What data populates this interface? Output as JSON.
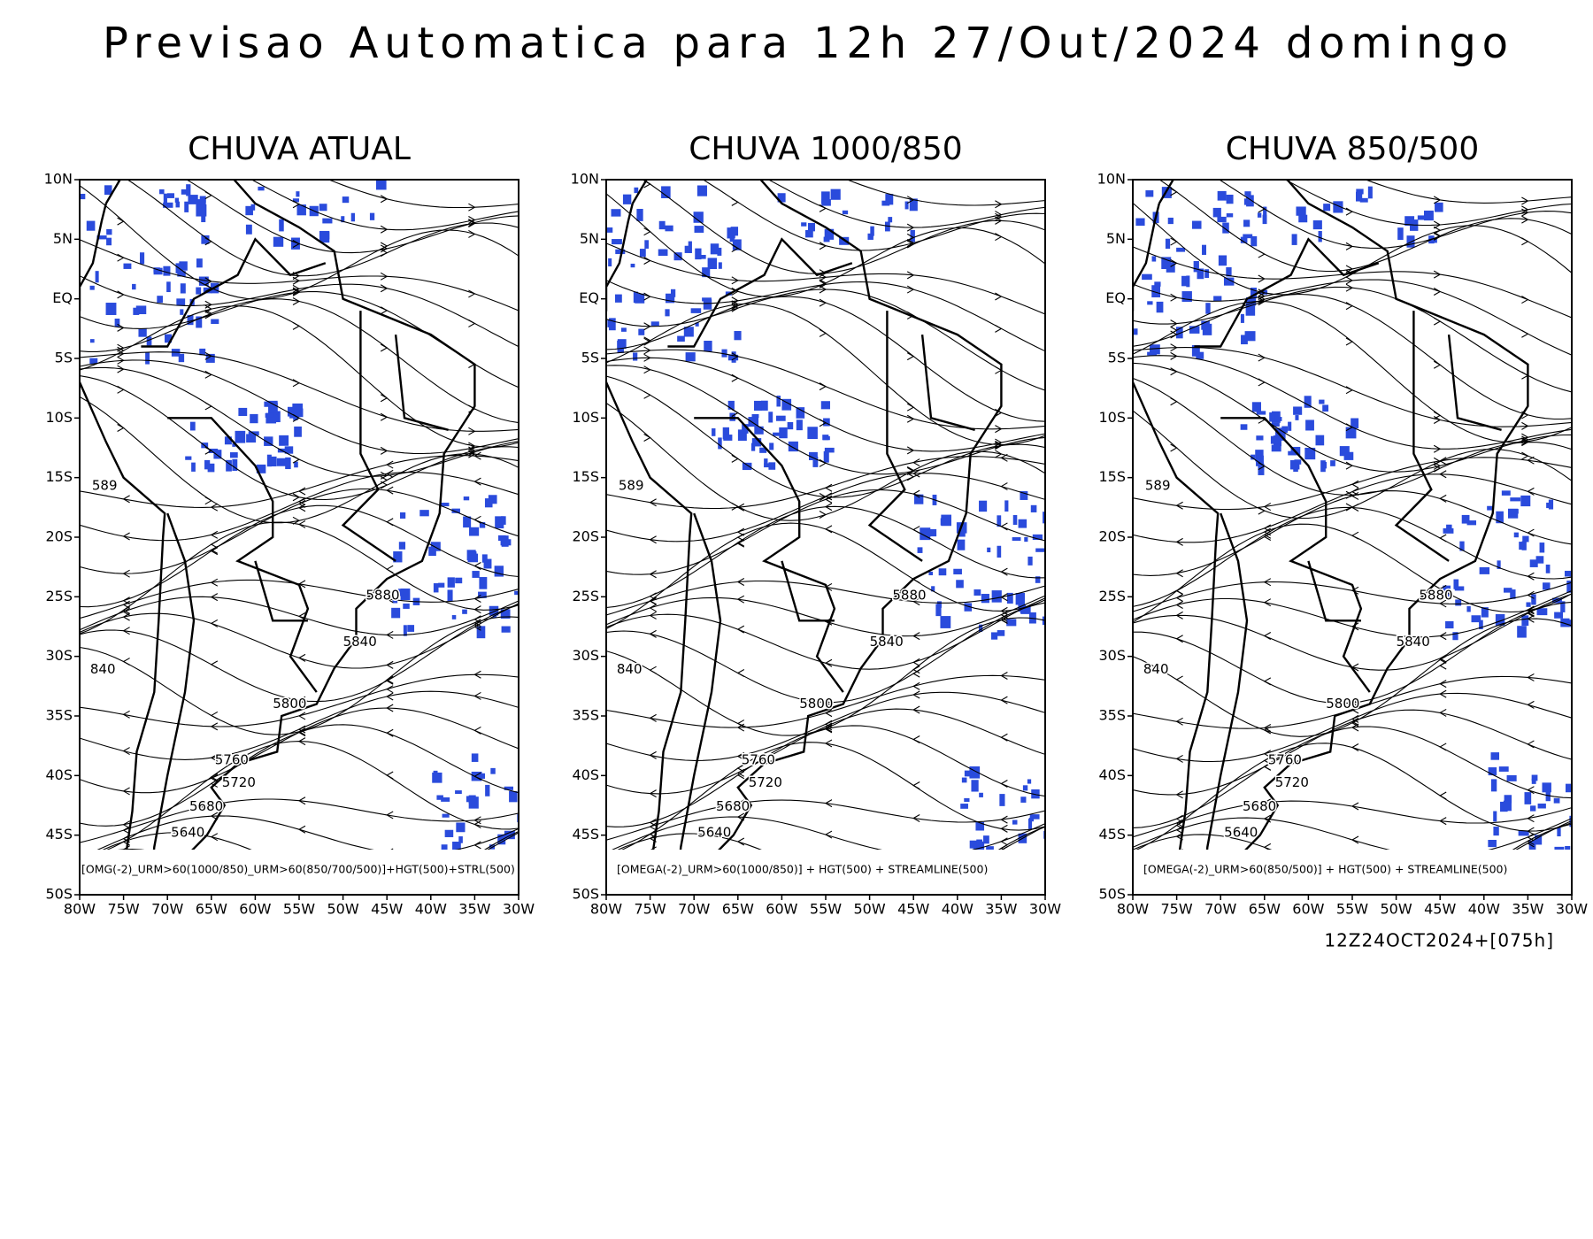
{
  "title": "Previsao Automatica para 12h 27/Out/2024 domingo",
  "lat_labels": [
    "10N",
    "5N",
    "EQ",
    "5S",
    "10S",
    "15S",
    "20S",
    "25S",
    "30S",
    "35S",
    "40S",
    "45S",
    "50S"
  ],
  "lon_labels": [
    "80W",
    "75W",
    "70W",
    "65W",
    "60W",
    "55W",
    "50W",
    "45W",
    "40W",
    "35W",
    "30W"
  ],
  "panels": [
    {
      "title": "CHUVA ATUAL",
      "legend": "[OMG(-2)_URM>60(1000/850)_URM>60(850/700/500)]+HGT(500)+STRL(500)",
      "contour_labels": [
        "5880",
        "5840",
        "5800",
        "5760",
        "5720",
        "5680",
        "5640",
        "840",
        "589"
      ]
    },
    {
      "title": "CHUVA 1000/850",
      "legend": "[OMEGA(-2)_URM>60(1000/850)] + HGT(500) + STREAMLINE(500)",
      "contour_labels": [
        "5880",
        "5840",
        "5800",
        "5760",
        "5720",
        "5680",
        "5640",
        "840",
        "589"
      ]
    },
    {
      "title": "CHUVA 850/500",
      "legend": "[OMEGA(-2)_URM>60(850/500)] + HGT(500) + STREAMLINE(500)",
      "contour_labels": [
        "5880",
        "5840",
        "5800",
        "5760",
        "5720",
        "5680",
        "5640",
        "840",
        "589"
      ]
    }
  ],
  "timestamp": "12Z24OCT2024+[075h]"
}
